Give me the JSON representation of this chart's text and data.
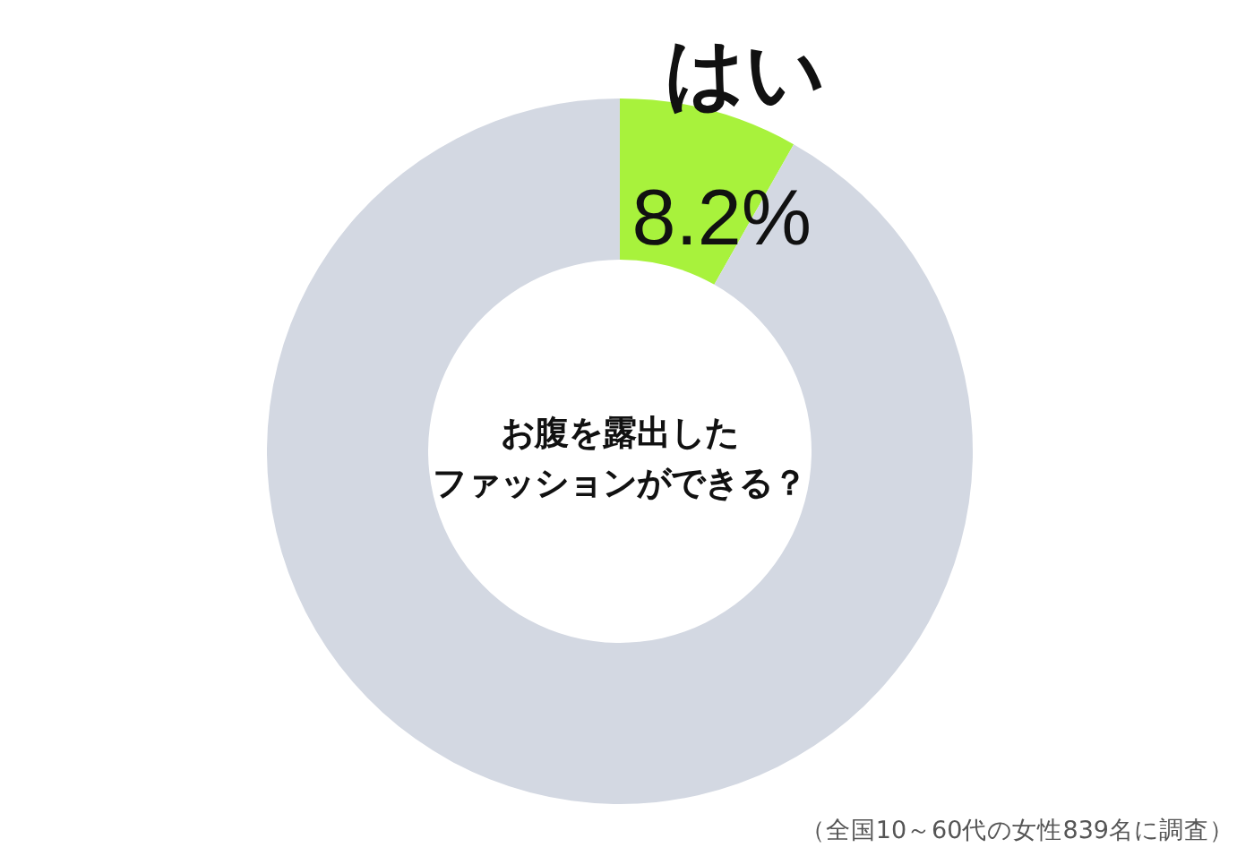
{
  "chart_data": {
    "type": "donut",
    "title": "お腹を露出したファッションができる？",
    "categories": [
      "はい",
      null
    ],
    "values": [
      8.2,
      91.8
    ],
    "colors": [
      "#a8f23c",
      "#d3d8e2"
    ],
    "value_labels": [
      "8.2%",
      null
    ],
    "annotations": [
      "（全国10～60代の女性839名に調査）"
    ]
  }
}
